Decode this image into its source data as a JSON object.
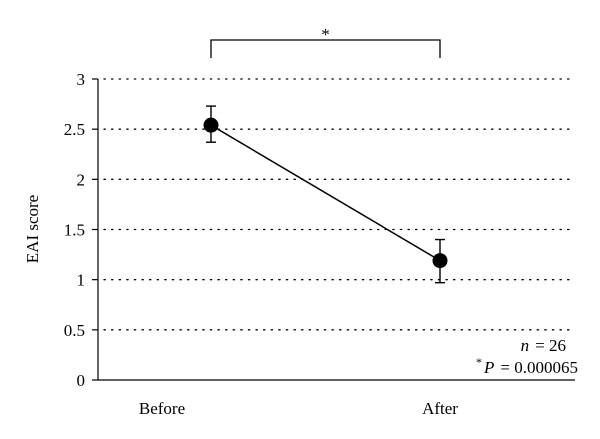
{
  "chart_data": {
    "type": "line",
    "categories": [
      "Before",
      "After"
    ],
    "series": [
      {
        "values": [
          2.54,
          1.19
        ],
        "error_low": [
          2.37,
          0.97
        ],
        "error_high": [
          2.73,
          1.4
        ]
      }
    ],
    "ylabel": "EAI score",
    "ylim": [
      0,
      3
    ],
    "yticks": [
      "0",
      "0.5",
      "1",
      "1.5",
      "2",
      "2.5",
      "3"
    ],
    "ytick_values": [
      0,
      0.5,
      1,
      1.5,
      2,
      2.5,
      3
    ],
    "grid": "dotted-horizontal",
    "significance": {
      "from": "Before",
      "to": "After",
      "label": "*"
    },
    "annotations": {
      "n_symbol": "n",
      "n_value": "= 26",
      "p_star": "*",
      "p_symbol": "P",
      "p_value": "= 0.000065"
    }
  }
}
